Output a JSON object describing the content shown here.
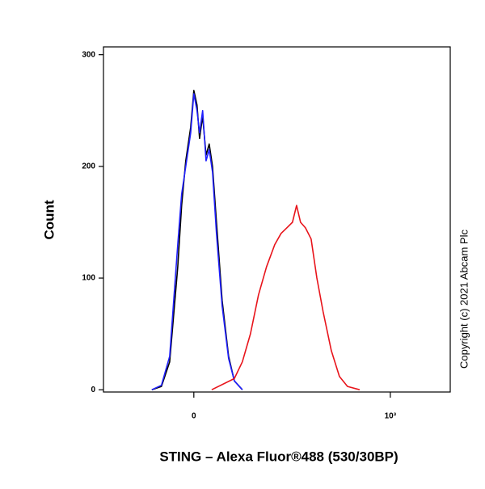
{
  "chart_data": {
    "type": "line",
    "x_label": "STING – Alexa Fluor®488 (530/30BP)",
    "y_label": "Count",
    "annotation": "Copyright (c) 2021 Abcam Plc",
    "xlim": [
      -460,
      1305
    ],
    "xticks": [
      0,
      {
        "value": 1000,
        "label": "10³"
      }
    ],
    "ylim": [
      -2,
      307
    ],
    "yticks": [
      0,
      100,
      200,
      300
    ],
    "series": [
      {
        "color": "#000000",
        "x": [
          -214,
          -165,
          -123,
          -82,
          -62,
          -41,
          -16,
          0,
          16,
          29,
          45,
          62,
          78,
          95,
          115,
          144,
          177,
          206,
          247
        ],
        "values": [
          0,
          3,
          25,
          110,
          165,
          205,
          235,
          268,
          255,
          225,
          245,
          210,
          220,
          200,
          150,
          80,
          30,
          8,
          0
        ]
      },
      {
        "color": "#1f1fff",
        "x": [
          -214,
          -165,
          -123,
          -82,
          -62,
          -41,
          -16,
          0,
          16,
          29,
          45,
          62,
          78,
          95,
          115,
          144,
          177,
          206,
          247
        ],
        "values": [
          0,
          4,
          30,
          130,
          175,
          200,
          230,
          265,
          250,
          230,
          250,
          205,
          215,
          195,
          140,
          75,
          28,
          8,
          0
        ]
      },
      {
        "color": "#e8141b",
        "x": [
          91,
          206,
          247,
          288,
          329,
          370,
          412,
          444,
          473,
          502,
          523,
          543,
          568,
          597,
          626,
          658,
          700,
          741,
          782,
          844
        ],
        "values": [
          0,
          10,
          25,
          50,
          85,
          110,
          130,
          140,
          145,
          150,
          165,
          150,
          145,
          135,
          100,
          70,
          35,
          12,
          3,
          0
        ]
      }
    ]
  }
}
